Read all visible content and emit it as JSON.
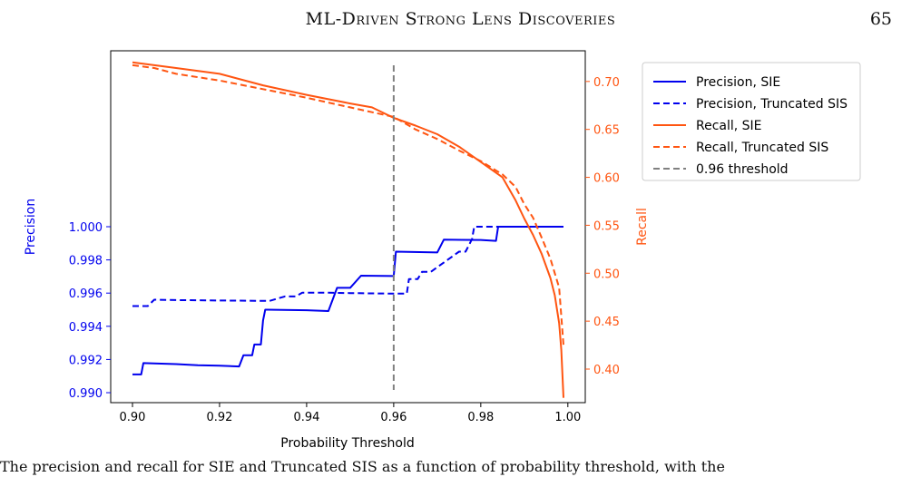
{
  "page_header": {
    "running_title": "ML-Driven Strong Lens Discoveries",
    "page_number": "65"
  },
  "colors": {
    "precision": "#0000ee",
    "recall": "#ff5511",
    "threshold": "#808080"
  },
  "chart_data": {
    "type": "line",
    "xlabel": "Probability Threshold",
    "ylabel_left": "Precision",
    "ylabel_right": "Recall",
    "xlim": [
      0.895,
      1.004
    ],
    "ylim_left": [
      0.9894,
      1.0106
    ],
    "ylim_right": [
      0.365,
      0.732
    ],
    "x_ticks": [
      0.9,
      0.92,
      0.94,
      0.96,
      0.98,
      1.0
    ],
    "x_tick_labels": [
      "0.90",
      "0.92",
      "0.94",
      "0.96",
      "0.98",
      "1.00"
    ],
    "left_ticks": [
      0.99,
      0.992,
      0.994,
      0.996,
      0.998,
      1.0
    ],
    "left_tick_labels": [
      "0.990",
      "0.992",
      "0.994",
      "0.996",
      "0.998",
      "1.000"
    ],
    "right_ticks": [
      0.4,
      0.45,
      0.5,
      0.55,
      0.6,
      0.65,
      0.7
    ],
    "right_tick_labels": [
      "0.40",
      "0.45",
      "0.50",
      "0.55",
      "0.60",
      "0.65",
      "0.70"
    ],
    "grid": false,
    "legend_position": "outside-right",
    "series": [
      {
        "name": "Precision, SIE",
        "axis": "left",
        "dash": "solid",
        "color": "#0000ee",
        "x": [
          0.9,
          0.902,
          0.9025,
          0.91,
          0.915,
          0.92,
          0.9245,
          0.9255,
          0.9275,
          0.928,
          0.9295,
          0.93,
          0.9305,
          0.931,
          0.94,
          0.945,
          0.947,
          0.95,
          0.9525,
          0.96,
          0.9605,
          0.97,
          0.9715,
          0.98,
          0.9835,
          0.984,
          0.999
        ],
        "y": [
          0.9911,
          0.9911,
          0.99178,
          0.99172,
          0.99165,
          0.99163,
          0.99158,
          0.99225,
          0.99225,
          0.9929,
          0.9929,
          0.99435,
          0.995,
          0.995,
          0.99497,
          0.99492,
          0.99632,
          0.99632,
          0.99705,
          0.99703,
          0.9985,
          0.99845,
          0.99922,
          0.9992,
          0.99915,
          1.0,
          1.0
        ]
      },
      {
        "name": "Precision, Truncated SIS",
        "axis": "left",
        "dash": "dashed",
        "color": "#0000ee",
        "x": [
          0.9,
          0.9035,
          0.905,
          0.91,
          0.93,
          0.9315,
          0.935,
          0.9375,
          0.939,
          0.945,
          0.95,
          0.96,
          0.963,
          0.9635,
          0.9655,
          0.9665,
          0.9685,
          0.975,
          0.9765,
          0.978,
          0.9785,
          0.984,
          0.999
        ],
        "y": [
          0.99522,
          0.99522,
          0.9956,
          0.99558,
          0.99553,
          0.99553,
          0.9958,
          0.9958,
          0.99603,
          0.99602,
          0.996,
          0.99597,
          0.99597,
          0.99685,
          0.99685,
          0.99728,
          0.99728,
          0.9985,
          0.9985,
          0.99925,
          1.0,
          1.0,
          1.0
        ]
      },
      {
        "name": "Recall, SIE",
        "axis": "right",
        "dash": "solid",
        "color": "#ff5511",
        "x": [
          0.9,
          0.905,
          0.91,
          0.92,
          0.93,
          0.94,
          0.95,
          0.955,
          0.96,
          0.965,
          0.97,
          0.975,
          0.98,
          0.985,
          0.988,
          0.99,
          0.992,
          0.994,
          0.996,
          0.997,
          0.998,
          0.9985,
          0.999
        ],
        "y": [
          0.72,
          0.717,
          0.714,
          0.708,
          0.696,
          0.686,
          0.677,
          0.673,
          0.662,
          0.654,
          0.645,
          0.632,
          0.616,
          0.6,
          0.576,
          0.557,
          0.54,
          0.52,
          0.495,
          0.477,
          0.448,
          0.42,
          0.37
        ]
      },
      {
        "name": "Recall, Truncated SIS",
        "axis": "right",
        "dash": "dashed",
        "color": "#ff5511",
        "x": [
          0.9,
          0.905,
          0.91,
          0.92,
          0.93,
          0.94,
          0.95,
          0.955,
          0.96,
          0.965,
          0.97,
          0.975,
          0.98,
          0.985,
          0.988,
          0.99,
          0.992,
          0.994,
          0.996,
          0.997,
          0.998,
          0.9985,
          0.999
        ],
        "y": [
          0.717,
          0.714,
          0.708,
          0.701,
          0.692,
          0.683,
          0.673,
          0.668,
          0.663,
          0.65,
          0.64,
          0.628,
          0.617,
          0.603,
          0.59,
          0.572,
          0.558,
          0.537,
          0.515,
          0.5,
          0.485,
          0.455,
          0.425
        ]
      }
    ],
    "threshold_line": {
      "name": "0.96 threshold",
      "x": 0.96,
      "y_range": [
        0.9894,
        1.0106
      ],
      "dash": "dashed",
      "color": "#808080"
    }
  },
  "caption_fragment": "The precision and recall for SIE and Truncated SIS as a function of probability threshold, with the"
}
